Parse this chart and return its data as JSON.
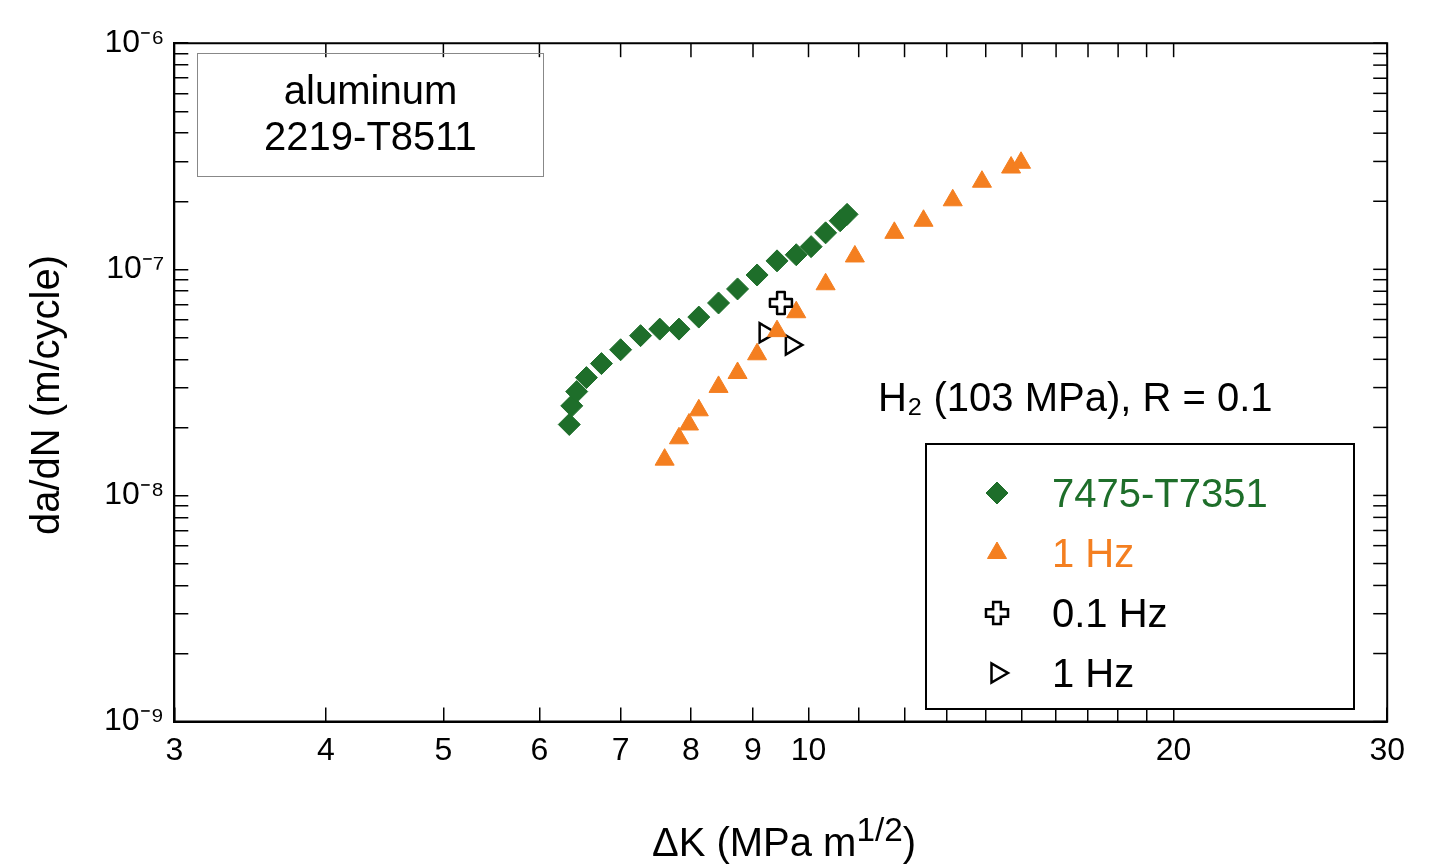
{
  "chart_data": {
    "type": "scatter",
    "xlabel": "ΔK (MPa m$^{1/2}$)",
    "ylabel": "da/dN (m/cycle)",
    "legend_title": "H₂ (103 MPa), R = 0.1",
    "annotations": [
      "aluminum\n2219-T8511"
    ],
    "log": "xy",
    "grid": false,
    "legend": "bottom right",
    "xlim": [
      3,
      30
    ],
    "xticks": [
      3,
      4,
      5,
      6,
      7,
      8,
      9,
      10,
      {
        "value": 11,
        "label": null
      },
      {
        "value": 12,
        "label": null
      },
      {
        "value": 13,
        "label": null
      },
      {
        "value": 14,
        "label": null
      },
      {
        "value": 15,
        "label": null
      },
      {
        "value": 16,
        "label": null
      },
      {
        "value": 17,
        "label": null
      },
      {
        "value": 18,
        "label": null
      },
      {
        "value": 19,
        "label": null
      },
      20,
      30
    ],
    "ylim": [
      1e-09,
      1e-06
    ],
    "yticks": [
      {
        "value": 1e-09,
        "label": "10⁻⁹"
      },
      {
        "value": 2e-09,
        "label": null
      },
      {
        "value": 3e-09,
        "label": null
      },
      {
        "value": 4e-09,
        "label": null
      },
      {
        "value": 5e-09,
        "label": null
      },
      {
        "value": 6e-09,
        "label": null
      },
      {
        "value": 7e-09,
        "label": null
      },
      {
        "value": 8e-09,
        "label": null
      },
      {
        "value": 9e-09,
        "label": null
      },
      {
        "value": 1e-08,
        "label": "10⁻⁸"
      },
      {
        "value": 2e-08,
        "label": null
      },
      {
        "value": 3e-08,
        "label": null
      },
      {
        "value": 4e-08,
        "label": null
      },
      {
        "value": 5e-08,
        "label": null
      },
      {
        "value": 6e-08,
        "label": null
      },
      {
        "value": 7e-08,
        "label": null
      },
      {
        "value": 8e-08,
        "label": null
      },
      {
        "value": 9e-08,
        "label": null
      },
      {
        "value": 1e-07,
        "label": "10⁻⁷"
      },
      {
        "value": 2e-07,
        "label": null
      },
      {
        "value": 3e-07,
        "label": null
      },
      {
        "value": 4e-07,
        "label": null
      },
      {
        "value": 5e-07,
        "label": null
      },
      {
        "value": 6e-07,
        "label": null
      },
      {
        "value": 7e-07,
        "label": null
      },
      {
        "value": 8e-07,
        "label": null
      },
      {
        "value": 9e-07,
        "label": null
      },
      {
        "value": 1e-06,
        "label": "10⁻⁶"
      }
    ],
    "series": [
      {
        "name": "7475-T7351",
        "color": "#1e6e2a",
        "marker": "diamond",
        "x": [
          6.35,
          6.38,
          6.44,
          6.56,
          6.75,
          7.0,
          7.27,
          7.54,
          7.82,
          8.12,
          8.43,
          8.74,
          9.07,
          9.42,
          9.77,
          10.05,
          10.33,
          10.62,
          10.76
        ],
        "values": [
          2.06e-08,
          2.49e-08,
          2.88e-08,
          3.32e-08,
          3.83e-08,
          4.41e-08,
          5.09e-08,
          5.44e-08,
          5.44e-08,
          6.15e-08,
          7.1e-08,
          8.19e-08,
          9.44e-08,
          1.09e-07,
          1.16e-07,
          1.26e-07,
          1.45e-07,
          1.64e-07,
          1.75e-07
        ]
      },
      {
        "name": "1 Hz",
        "color": "#f47f20",
        "marker": "triangle",
        "x": [
          7.61,
          7.82,
          7.97,
          8.12,
          8.43,
          8.74,
          9.07,
          9.42,
          9.77,
          10.33,
          10.92,
          11.77,
          12.44,
          13.15,
          13.9,
          14.69,
          14.97
        ],
        "values": [
          1.44e-08,
          1.79e-08,
          2.06e-08,
          2.38e-08,
          3.02e-08,
          3.48e-08,
          4.21e-08,
          5.33e-08,
          6.46e-08,
          8.59e-08,
          1.14e-07,
          1.45e-07,
          1.64e-07,
          2.02e-07,
          2.44e-07,
          2.82e-07,
          2.96e-07
        ]
      },
      {
        "name": "0.1 Hz",
        "color": "#000000",
        "marker": "cross",
        "x": [
          9.49
        ],
        "values": [
          7.1e-08
        ]
      },
      {
        "name": "1 Hz",
        "color": "#000000",
        "marker": "triangle-right",
        "x": [
          9.21,
          9.68
        ],
        "values": [
          5.24e-08,
          4.63e-08
        ]
      }
    ]
  }
}
